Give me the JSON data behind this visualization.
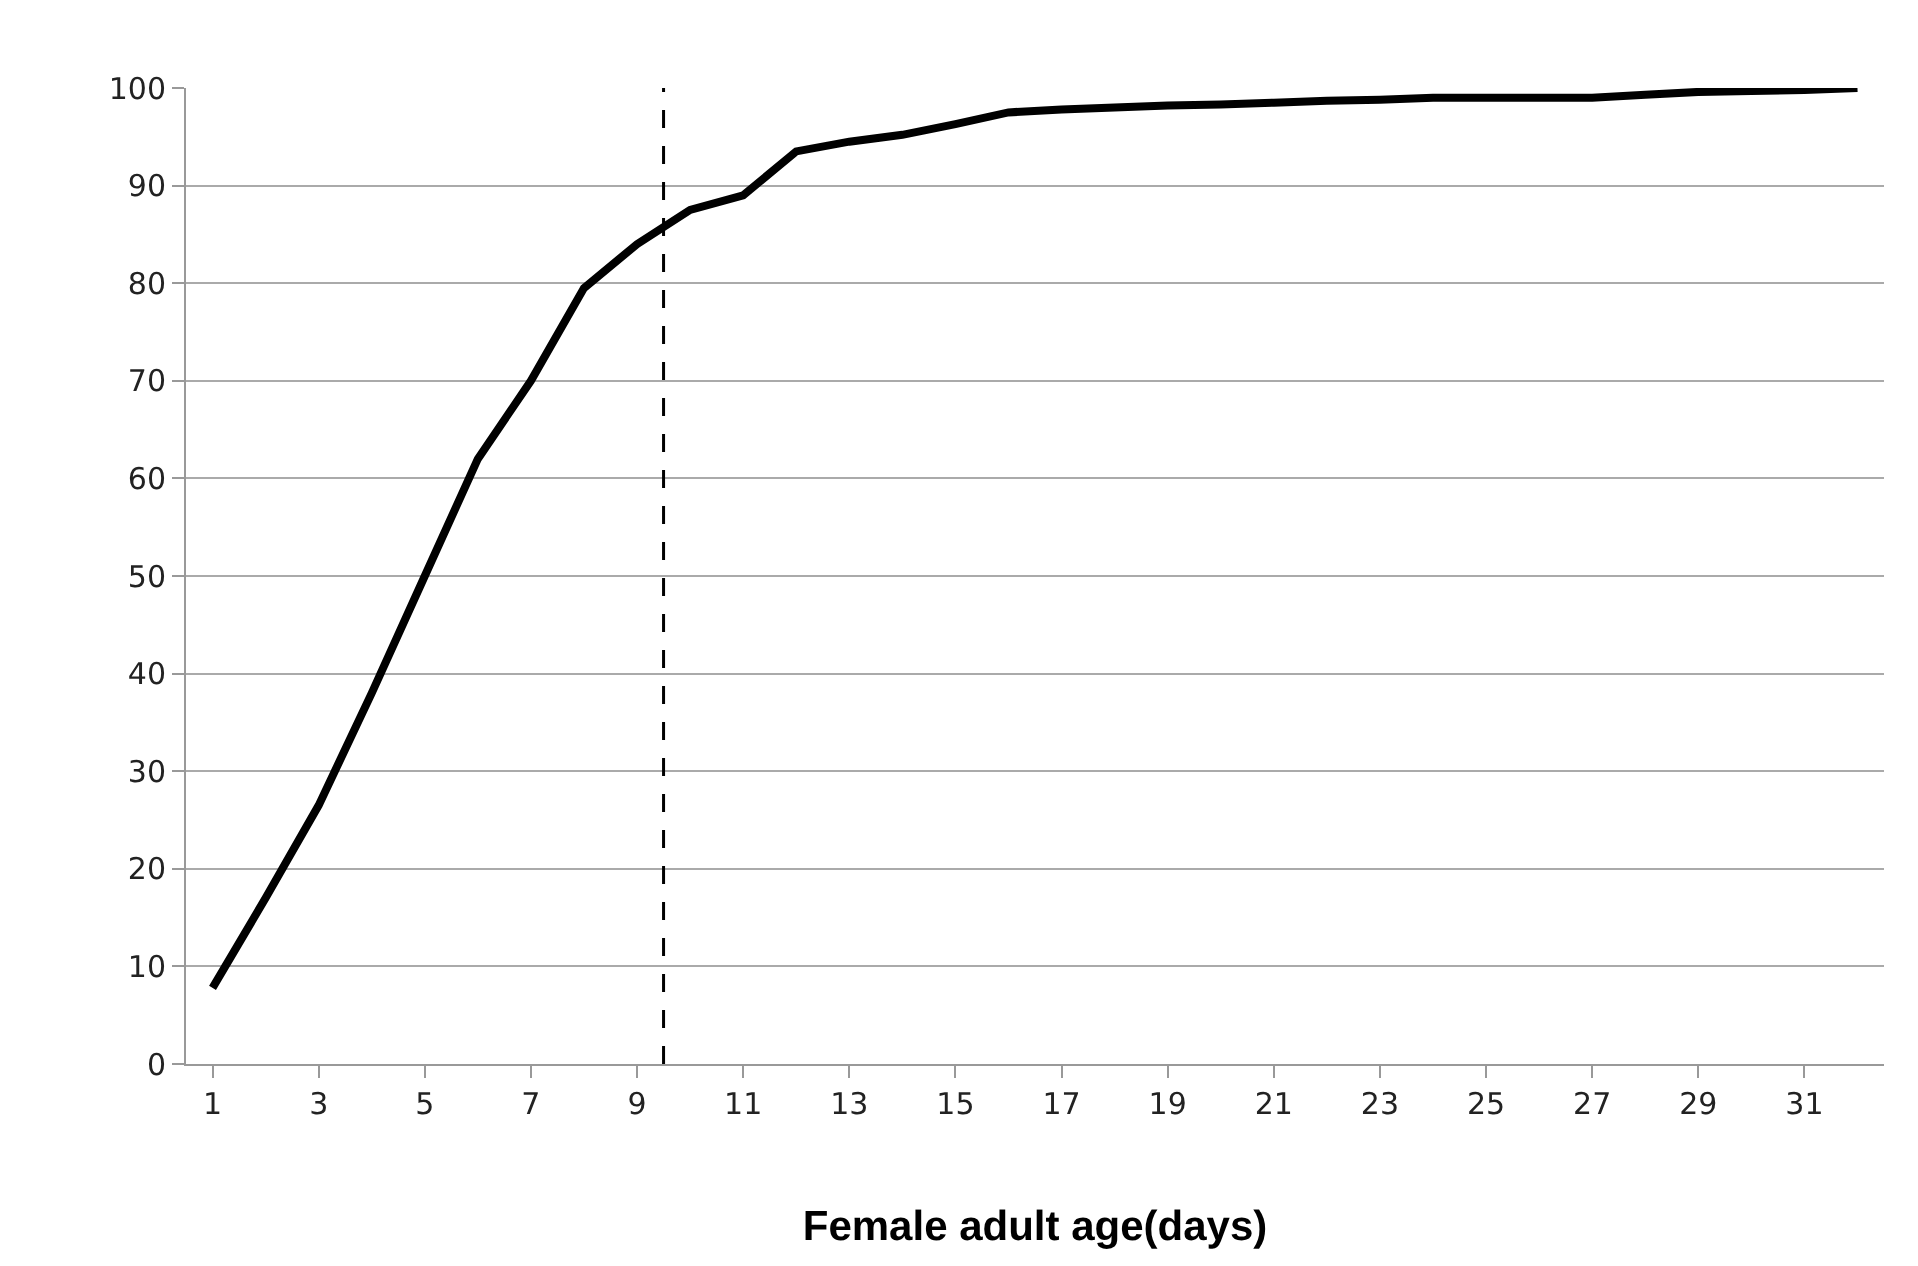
{
  "chart_data": {
    "type": "line",
    "xlabel": "Female adult age(days)",
    "x": [
      1,
      2,
      3,
      4,
      5,
      6,
      7,
      8,
      9,
      10,
      11,
      12,
      13,
      14,
      15,
      16,
      17,
      18,
      19,
      20,
      21,
      22,
      23,
      24,
      25,
      26,
      27,
      28,
      29,
      30,
      31,
      32
    ],
    "series": [
      {
        "color": "#000000",
        "values": [
          7.8,
          17,
          26.5,
          38,
          50,
          62,
          70,
          79.5,
          84,
          87.5,
          89,
          93.5,
          94.5,
          95.2,
          96.3,
          97.5,
          97.8,
          98,
          98.2,
          98.3,
          98.5,
          98.7,
          98.8,
          99,
          99,
          99,
          99,
          99.3,
          99.6,
          99.7,
          99.8,
          100
        ]
      }
    ],
    "xlim": [
      0.5,
      32.5
    ],
    "xticks": [
      1,
      3,
      5,
      7,
      9,
      11,
      13,
      15,
      17,
      19,
      21,
      23,
      25,
      27,
      29,
      31
    ],
    "ylim": [
      0,
      100
    ],
    "yticks": [
      0,
      10,
      20,
      30,
      40,
      50,
      60,
      70,
      80,
      90,
      100
    ],
    "ref_lines": [
      {
        "axis": "x",
        "value": 9.5,
        "color": "#000000",
        "line_style": "dashed"
      }
    ],
    "grid": "y",
    "marker": "none",
    "line_style": "solid"
  }
}
